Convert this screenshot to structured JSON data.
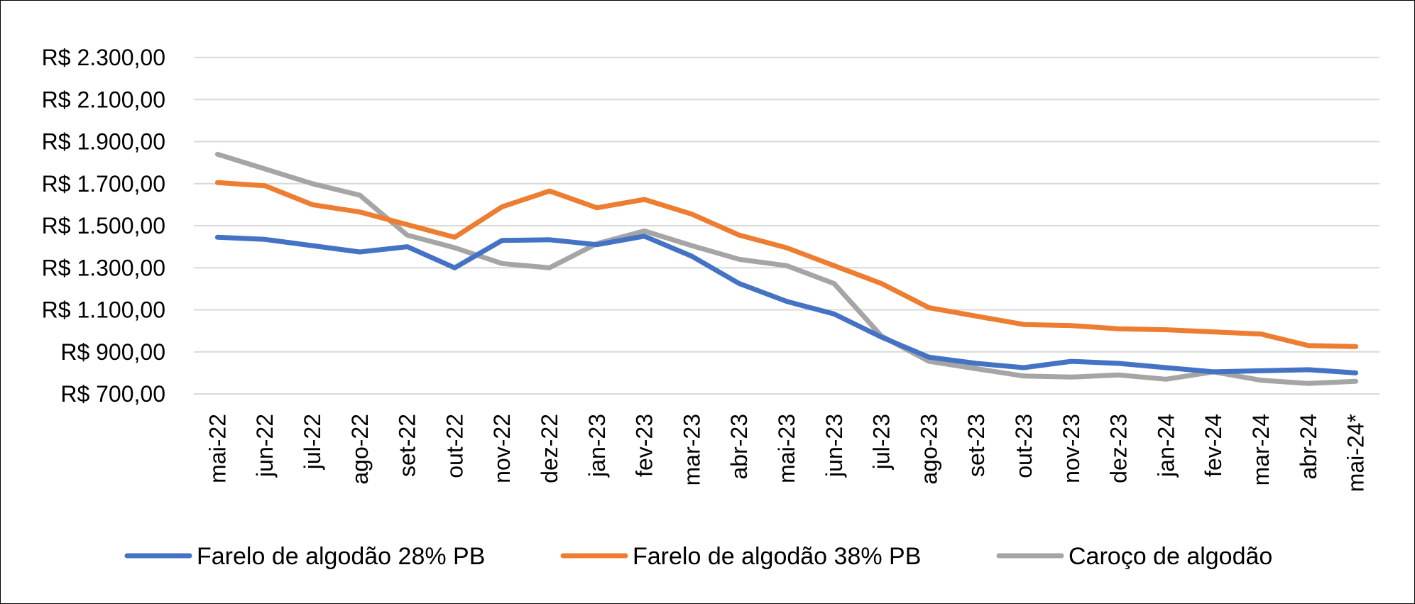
{
  "chart_data": {
    "type": "line",
    "title": "",
    "xlabel": "",
    "ylabel": "",
    "ylim": [
      700,
      2300
    ],
    "yticks": [
      700,
      900,
      1100,
      1300,
      1500,
      1700,
      1900,
      2100,
      2300
    ],
    "ytick_labels": [
      "R$ 700,00",
      "R$ 900,00",
      "R$ 1.100,00",
      "R$ 1.300,00",
      "R$ 1.500,00",
      "R$ 1.700,00",
      "R$ 1.900,00",
      "R$ 2.100,00",
      "R$ 2.300,00"
    ],
    "grid": "horizontal",
    "legend": "bottom",
    "categories": [
      "mai-22",
      "jun-22",
      "jul-22",
      "ago-22",
      "set-22",
      "out-22",
      "nov-22",
      "dez-22",
      "jan-23",
      "fev-23",
      "mar-23",
      "abr-23",
      "mai-23",
      "jun-23",
      "jul-23",
      "ago-23",
      "set-23",
      "out-23",
      "nov-23",
      "dez-23",
      "jan-24",
      "fev-24",
      "mar-24",
      "abr-24",
      "mai-24*"
    ],
    "series": [
      {
        "name": "Farelo de algodão 28% PB",
        "color": "#4472C4",
        "values": [
          1445,
          1435,
          1405,
          1375,
          1400,
          1300,
          1430,
          1433,
          1410,
          1450,
          1355,
          1225,
          1140,
          1080,
          970,
          875,
          845,
          825,
          855,
          845,
          825,
          805,
          810,
          815,
          800
        ]
      },
      {
        "name": "Farelo de algodão 38% PB",
        "color": "#ED7D31",
        "values": [
          1705,
          1690,
          1600,
          1565,
          1505,
          1445,
          1590,
          1665,
          1585,
          1625,
          1555,
          1455,
          1395,
          1310,
          1225,
          1110,
          1070,
          1030,
          1025,
          1010,
          1005,
          995,
          985,
          930,
          925
        ]
      },
      {
        "name": "Caroço de algodão",
        "color": "#A5A5A5",
        "values": [
          1840,
          1770,
          1700,
          1645,
          1455,
          1395,
          1320,
          1300,
          1415,
          1475,
          1405,
          1340,
          1310,
          1225,
          975,
          855,
          820,
          785,
          780,
          790,
          770,
          805,
          765,
          750,
          760
        ]
      }
    ]
  }
}
